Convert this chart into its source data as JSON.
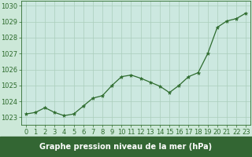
{
  "x": [
    0,
    1,
    2,
    3,
    4,
    5,
    6,
    7,
    8,
    9,
    10,
    11,
    12,
    13,
    14,
    15,
    16,
    17,
    18,
    19,
    20,
    21,
    22,
    23
  ],
  "y": [
    1023.2,
    1023.3,
    1023.6,
    1023.3,
    1023.1,
    1023.2,
    1023.7,
    1024.2,
    1024.35,
    1025.0,
    1025.55,
    1025.65,
    1025.45,
    1025.2,
    1024.95,
    1024.55,
    1025.0,
    1025.55,
    1025.8,
    1027.0,
    1028.65,
    1029.05,
    1029.2,
    1029.55
  ],
  "ylim": [
    1022.5,
    1030.3
  ],
  "xlim": [
    -0.5,
    23.5
  ],
  "yticks": [
    1023,
    1024,
    1025,
    1026,
    1027,
    1028,
    1029,
    1030
  ],
  "xticks": [
    0,
    1,
    2,
    3,
    4,
    5,
    6,
    7,
    8,
    9,
    10,
    11,
    12,
    13,
    14,
    15,
    16,
    17,
    18,
    19,
    20,
    21,
    22,
    23
  ],
  "line_color": "#2d6b2d",
  "marker": "*",
  "marker_color": "#2d6b2d",
  "bg_color": "#cce8d8",
  "plot_bg_color": "#cce8e0",
  "grid_color": "#aacebb",
  "xlabel": "Graphe pression niveau de la mer (hPa)",
  "xlabel_color": "white",
  "xlabel_bg": "#336633",
  "axis_label_color": "#2d6b2d",
  "tick_label_fontsize": 6.0,
  "xlabel_fontsize": 7.0
}
